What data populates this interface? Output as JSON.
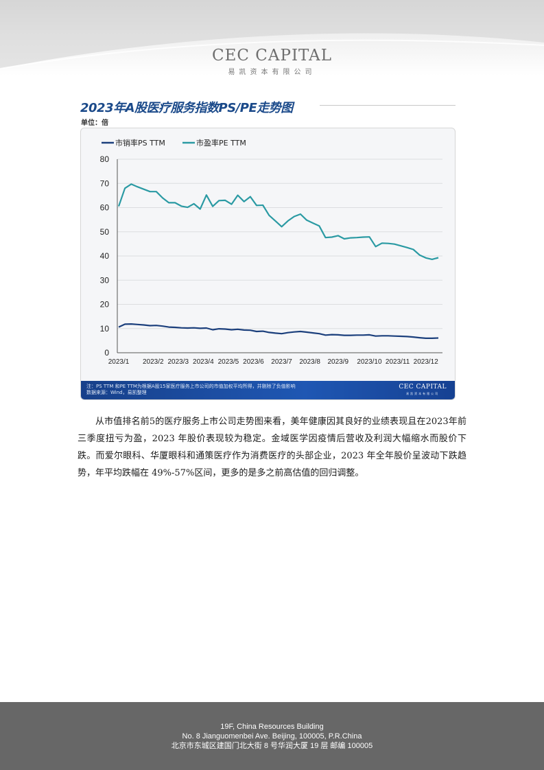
{
  "header": {
    "logo": "CEC CAPITAL",
    "logo_cn": "易凯资本有限公司"
  },
  "figure": {
    "title": "2023年A股医疗服务指数PS/PE走势图",
    "unit": "单位：倍",
    "note_line1": "注：PS TTM 和PE TTM为根据A股15家医疗服务上市公司的市值加权平均所得，并剔除了负值影响",
    "note_line2": "数据来源：Wind，易凯整理",
    "note_logo": "CEC CAPITAL",
    "note_logo_cn": "易凯资本有限公司"
  },
  "chart_data": {
    "type": "line",
    "title": "2023年A股医疗服务指数PS/PE走势图",
    "ylabel": "单位：倍",
    "xlabel": "",
    "ylim": [
      0,
      80
    ],
    "yticks": [
      0,
      10,
      20,
      30,
      40,
      50,
      60,
      70,
      80
    ],
    "x_tick_labels": [
      "2023/1",
      "2023/2",
      "2023/3",
      "2023/4",
      "2023/5",
      "2023/6",
      "2023/7",
      "2023/8",
      "2023/9",
      "2023/10",
      "2023/11",
      "2023/12"
    ],
    "x_tick_index": [
      0,
      5.5,
      9.5,
      13.5,
      17.5,
      21.5,
      26,
      30.5,
      35,
      40,
      44.5,
      49
    ],
    "legend_position": "top-left",
    "grid": true,
    "series": [
      {
        "name": "市销率PS TTM",
        "color": "#1b3f7c",
        "values": [
          10.6,
          11.8,
          11.9,
          11.7,
          11.5,
          11.2,
          11.3,
          11.0,
          10.6,
          10.5,
          10.3,
          10.2,
          10.3,
          10.1,
          10.2,
          9.5,
          9.9,
          9.8,
          9.5,
          9.7,
          9.4,
          9.3,
          8.8,
          8.9,
          8.4,
          8.1,
          7.9,
          8.3,
          8.6,
          8.8,
          8.5,
          8.2,
          7.9,
          7.3,
          7.5,
          7.4,
          7.2,
          7.2,
          7.3,
          7.3,
          7.4,
          6.9,
          7.0,
          7.0,
          6.9,
          6.8,
          6.7,
          6.5,
          6.2,
          6.0,
          6.0,
          6.1
        ]
      },
      {
        "name": "市盈率PE TTM",
        "color": "#2a9aa3",
        "values": [
          60.5,
          68.0,
          69.7,
          68.6,
          67.6,
          66.6,
          66.6,
          64.0,
          62.0,
          62.0,
          60.6,
          60.1,
          61.6,
          59.4,
          65.2,
          60.5,
          62.9,
          63.0,
          61.4,
          65.1,
          62.5,
          64.5,
          60.9,
          61.0,
          56.8,
          54.5,
          52.1,
          54.5,
          56.3,
          57.3,
          54.8,
          53.6,
          52.4,
          47.6,
          47.8,
          48.4,
          47.1,
          47.5,
          47.6,
          47.8,
          47.9,
          43.9,
          45.3,
          45.2,
          44.9,
          44.2,
          43.5,
          42.7,
          40.4,
          39.2,
          38.6,
          39.3
        ]
      }
    ]
  },
  "body": {
    "paragraph": "从市值排名前5的医疗服务上市公司走势图来看，美年健康因其良好的业绩表现且在2023年前三季度扭亏为盈，2023 年股价表现较为稳定。金域医学因疫情后营收及利润大幅缩水而股价下跌。而爱尔眼科、华厦眼科和通策医疗作为消费医疗的头部企业，2023 年全年股价呈波动下跌趋势，年平均跌幅在 49%-57%区间，更多的是多之前高估值的回归调整。"
  },
  "footer": {
    "line1": "19F, China Resources Building",
    "line2": "No. 8 Jianguomenbei Ave. Beijing, 100005, P.R.China",
    "line3": "北京市东城区建国门北大街 8 号华润大厦 19 层  邮编  100005"
  }
}
